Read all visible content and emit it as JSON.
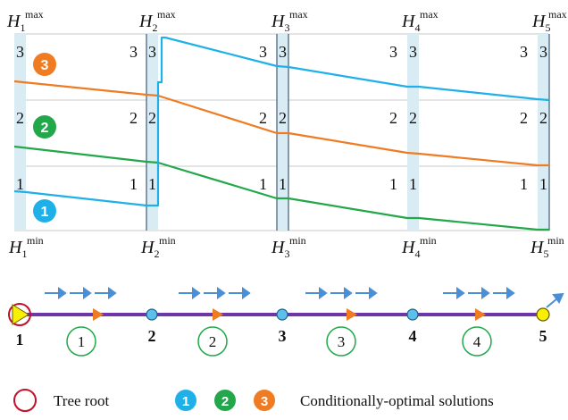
{
  "top_labels": [
    {
      "base": "H",
      "sub": "1",
      "sup": "max"
    },
    {
      "base": "H",
      "sub": "2",
      "sup": "max"
    },
    {
      "base": "H",
      "sub": "3",
      "sup": "max"
    },
    {
      "base": "H",
      "sub": "4",
      "sup": "max"
    },
    {
      "base": "H",
      "sub": "5",
      "sup": "max"
    }
  ],
  "bottom_labels": [
    {
      "base": "H",
      "sub": "1",
      "sup": "min"
    },
    {
      "base": "H",
      "sub": "2",
      "sup": "min"
    },
    {
      "base": "H",
      "sub": "3",
      "sup": "min"
    },
    {
      "base": "H",
      "sub": "4",
      "sup": "min"
    },
    {
      "base": "H",
      "sub": "5",
      "sup": "min"
    }
  ],
  "level_numbers": [
    "3",
    "2",
    "1"
  ],
  "line_badges": [
    "3",
    "2",
    "1"
  ],
  "nodes": [
    "1",
    "2",
    "3",
    "4",
    "5"
  ],
  "segments": [
    "1",
    "2",
    "3",
    "4"
  ],
  "legend": {
    "tree_root": "Tree root",
    "badges": [
      "1",
      "2",
      "3"
    ],
    "solutions": "Conditionally-optimal solutions"
  },
  "colors": {
    "blue": "#1fb0e8",
    "green": "#22a84a",
    "orange": "#ef7b22",
    "purple": "#6e36a8",
    "root_red": "#c0102a",
    "yellow": "#f7f000",
    "arrow_blue": "#4a8fd6"
  }
}
